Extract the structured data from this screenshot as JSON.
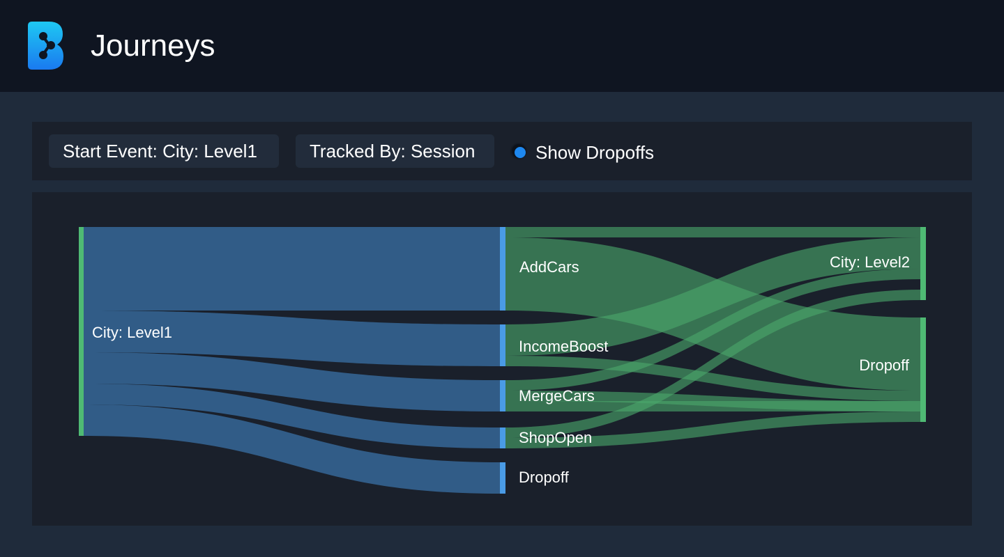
{
  "header": {
    "title": "Journeys",
    "logo_icon": "branch-logo-icon"
  },
  "controls": {
    "start_event_label": "Start Event: City: Level1",
    "tracked_by_label": "Tracked By: Session",
    "show_dropoffs_label": "Show Dropoffs",
    "show_dropoffs_checked": true
  },
  "colors": {
    "header_bg": "#0f1521",
    "page_bg": "#1f2b3b",
    "panel_bg": "#1a202b",
    "pill_bg": "#222c3b",
    "accent_blue": "#1e88f0",
    "flow_blue": "#33628f",
    "node_blue": "#4a9be6",
    "flow_green": "#4ba76a",
    "node_green": "#4fba74"
  },
  "chart_data": {
    "type": "sankey",
    "nodes": [
      {
        "id": "start",
        "label": "City: Level1",
        "column": 0
      },
      {
        "id": "addcars",
        "label": "AddCars",
        "column": 1
      },
      {
        "id": "incomeboost",
        "label": "IncomeBoost",
        "column": 1
      },
      {
        "id": "mergecars",
        "label": "MergeCars",
        "column": 1
      },
      {
        "id": "shopopen",
        "label": "ShopOpen",
        "column": 1
      },
      {
        "id": "dropoff1",
        "label": "Dropoff",
        "column": 1
      },
      {
        "id": "level2",
        "label": "City: Level2",
        "column": 2
      },
      {
        "id": "dropoff2",
        "label": "Dropoff",
        "column": 2
      }
    ],
    "links": [
      {
        "source": "start",
        "target": "addcars",
        "value": 120
      },
      {
        "source": "start",
        "target": "incomeboost",
        "value": 60
      },
      {
        "source": "start",
        "target": "mergecars",
        "value": 45
      },
      {
        "source": "start",
        "target": "shopopen",
        "value": 30
      },
      {
        "source": "start",
        "target": "dropoff1",
        "value": 45
      },
      {
        "source": "addcars",
        "target": "level2",
        "value": 15
      },
      {
        "source": "addcars",
        "target": "dropoff2",
        "value": 105
      },
      {
        "source": "incomeboost",
        "target": "level2",
        "value": 45
      },
      {
        "source": "incomeboost",
        "target": "dropoff2",
        "value": 15
      },
      {
        "source": "mergecars",
        "target": "level2",
        "value": 15
      },
      {
        "source": "mergecars",
        "target": "dropoff2",
        "value": 15
      },
      {
        "source": "mergecars",
        "target": "dropoff2",
        "value": 15
      },
      {
        "source": "shopopen",
        "target": "level2",
        "value": 15
      },
      {
        "source": "shopopen",
        "target": "dropoff2",
        "value": 15
      }
    ]
  }
}
